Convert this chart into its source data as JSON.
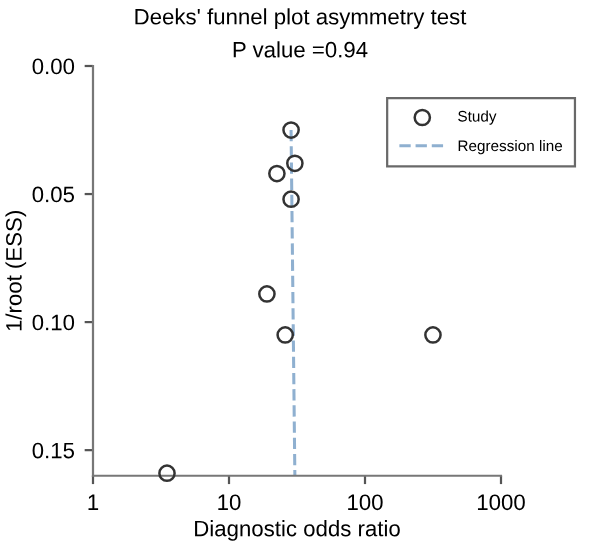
{
  "chart_data": {
    "type": "scatter",
    "title": "Deeks' funnel plot asymmetry test",
    "subtitle": "P value =0.94",
    "xlabel": "Diagnostic odds ratio",
    "ylabel": "1/root (ESS)",
    "log": "x",
    "xlim": [
      1,
      1000
    ],
    "xticks": [
      1,
      10,
      100,
      1000
    ],
    "ylim": [
      0.16,
      0
    ],
    "yticks": [
      {
        "value": 0,
        "label": "0.00"
      },
      {
        "value": 0.05,
        "label": "0.05"
      },
      {
        "value": 0.1,
        "label": "0.10"
      },
      {
        "value": 0.15,
        "label": "0.15"
      }
    ],
    "legend": "top right",
    "grid": false,
    "series": [
      {
        "name": "Study",
        "marker": "circle",
        "color": "#333333",
        "x": [
          28.6,
          22.5,
          30.5,
          28.6,
          19,
          25.9,
          316,
          3.5
        ],
        "values": [
          0.025,
          0.042,
          0.038,
          0.052,
          0.089,
          0.105,
          0.105,
          0.159
        ]
      },
      {
        "name": "Regression line",
        "type": "line",
        "marker": "none",
        "line_style": "dashed",
        "color": "#8fb0d0",
        "x": [
          28.6,
          30.5
        ],
        "values": [
          0.025,
          0.16
        ]
      }
    ]
  }
}
